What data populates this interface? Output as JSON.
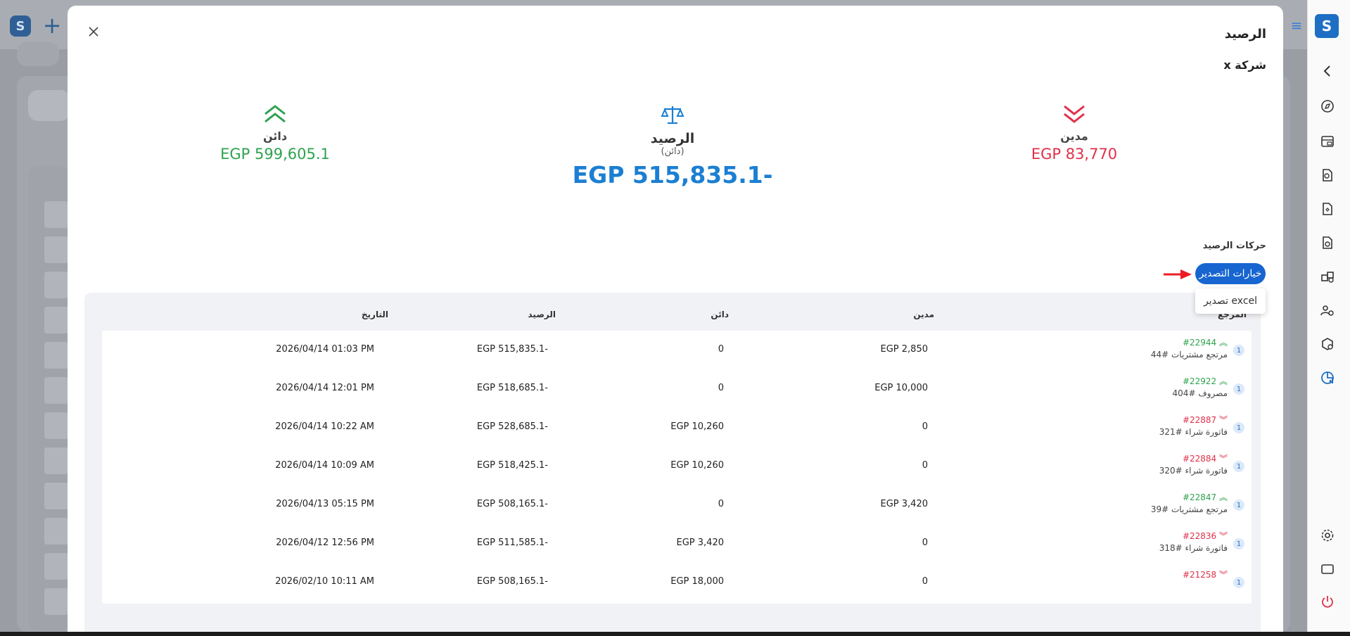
{
  "background": {
    "app_logo": "S",
    "add_icon": "+"
  },
  "rail": {
    "logo": "S",
    "icons": [
      "chevron-left-icon",
      "compass-icon",
      "cash-register-icon",
      "document-search-icon",
      "document-money-icon",
      "document-dollar-icon",
      "boxes-icon",
      "users-icon",
      "box-dollar-icon",
      "chart-report-icon",
      "settings-icon",
      "window-icon",
      "power-icon"
    ]
  },
  "modal": {
    "title": "الرصيد",
    "subtitle": "شركة x",
    "credit": {
      "label": "دائن",
      "value": "EGP 599,605.1"
    },
    "balance": {
      "label": "الرصيد",
      "note": "(دائن)",
      "value": "EGP 515,835.1-"
    },
    "debit": {
      "label": "مدين",
      "value": "EGP 83,770"
    },
    "section_title": "حركات الرصيد",
    "export_button": "خيارات التصدير",
    "export_menu": [
      "تصدير excel"
    ],
    "columns": {
      "reference": "المرجع",
      "debit": "مدين",
      "credit": "دائن",
      "balance": "الرصيد",
      "date": "التاريخ"
    },
    "rows": [
      {
        "badge": "1",
        "ref": "#22944",
        "direction": "up",
        "desc": "مرتجع مشتريات #44",
        "debit": "EGP 2,850",
        "credit": "0",
        "balance": "EGP 515,835.1-",
        "date": "2026/04/14 01:03 PM"
      },
      {
        "badge": "1",
        "ref": "#22922",
        "direction": "up",
        "desc": "مصروف #404",
        "debit": "EGP 10,000",
        "credit": "0",
        "balance": "EGP 518,685.1-",
        "date": "2026/04/14 12:01 PM"
      },
      {
        "badge": "1",
        "ref": "#22887",
        "direction": "down",
        "desc": "فاتورة شراء #321",
        "debit": "0",
        "credit": "EGP 10,260",
        "balance": "EGP 528,685.1-",
        "date": "2026/04/14 10:22 AM"
      },
      {
        "badge": "1",
        "ref": "#22884",
        "direction": "down",
        "desc": "فاتورة شراء #320",
        "debit": "0",
        "credit": "EGP 10,260",
        "balance": "EGP 518,425.1-",
        "date": "2026/04/14 10:09 AM"
      },
      {
        "badge": "1",
        "ref": "#22847",
        "direction": "up",
        "desc": "مرتجع مشتريات #39",
        "debit": "EGP 3,420",
        "credit": "0",
        "balance": "EGP 508,165.1-",
        "date": "2026/04/13 05:15 PM"
      },
      {
        "badge": "1",
        "ref": "#22836",
        "direction": "down",
        "desc": "فاتورة شراء #318",
        "debit": "0",
        "credit": "EGP 3,420",
        "balance": "EGP 511,585.1-",
        "date": "2026/04/12 12:56 PM"
      },
      {
        "badge": "1",
        "ref": "#21258",
        "direction": "down",
        "desc": "",
        "debit": "0",
        "credit": "EGP 18,000",
        "balance": "EGP 508,165.1-",
        "date": "2026/02/10 10:11 AM"
      }
    ],
    "colors": {
      "credit": "#2ea24d",
      "debit": "#e0304a",
      "balance": "#1b7fd3",
      "button": "#1765d0"
    }
  }
}
